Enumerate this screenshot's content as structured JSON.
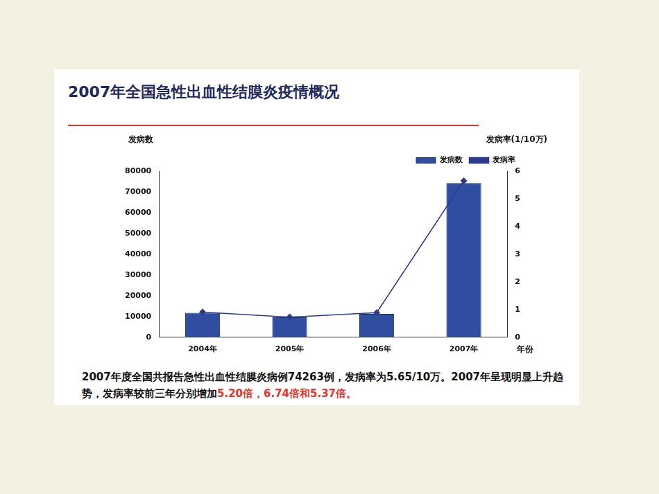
{
  "chart_data": {
    "type": "bar",
    "title": "2007年全国急性出血性结膜炎疫情概况",
    "categories": [
      "2004年",
      "2005年",
      "2006年",
      "2007年"
    ],
    "series": [
      {
        "name": "发病数",
        "type": "bar",
        "color": "#2f4ea0",
        "values": [
          11800,
          9600,
          11300,
          74263
        ]
      },
      {
        "name": "发病率",
        "type": "line",
        "axis": "y2",
        "color": "#2b3a8c",
        "marker": "diamond",
        "values": [
          0.91,
          0.73,
          0.89,
          5.65
        ]
      }
    ],
    "y_label": "发病数",
    "y2_label": "发病率(1/10万)",
    "x_label": "年份",
    "ylim": [
      0,
      80000
    ],
    "yticks": [
      0,
      10000,
      20000,
      30000,
      40000,
      50000,
      60000,
      70000,
      80000
    ],
    "y2lim": [
      0,
      6
    ],
    "y2ticks": [
      0,
      1,
      2,
      3,
      4,
      5,
      6
    ],
    "grid": false,
    "legend": "top-right",
    "caption": [
      {
        "text": "2007年度全国共报告急性出血性结膜炎病例74263例，发病率为5.65/10万。2007年呈现明显上升趋势，发病率较前三年分别增加",
        "color": "#111111"
      },
      {
        "text": "5.20倍，6.74倍和5.37倍。",
        "color": "#e8332a"
      }
    ]
  }
}
